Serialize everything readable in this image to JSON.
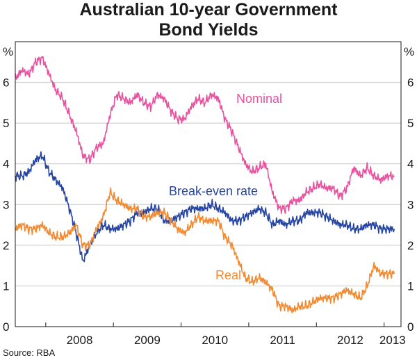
{
  "chart_data": {
    "type": "line",
    "title": "Australian 10-year Government Bond Yields",
    "title_lines": [
      "Australian 10-year Government",
      "Bond Yields"
    ],
    "unit_label": "%",
    "ylim": [
      0,
      7
    ],
    "yticks": [
      0,
      1,
      2,
      3,
      4,
      5,
      6
    ],
    "xlim": [
      2007.55,
      2013.25
    ],
    "xtick_labels": [
      "2008",
      "2009",
      "2010",
      "2011",
      "2012",
      "2013"
    ],
    "x": [
      2007.55,
      2007.65,
      2007.75,
      2007.85,
      2007.95,
      2008.05,
      2008.15,
      2008.25,
      2008.35,
      2008.45,
      2008.55,
      2008.65,
      2008.75,
      2008.85,
      2008.95,
      2009.05,
      2009.15,
      2009.25,
      2009.35,
      2009.45,
      2009.55,
      2009.65,
      2009.75,
      2009.85,
      2009.95,
      2010.05,
      2010.15,
      2010.25,
      2010.35,
      2010.45,
      2010.55,
      2010.65,
      2010.75,
      2010.85,
      2010.95,
      2011.05,
      2011.15,
      2011.25,
      2011.35,
      2011.45,
      2011.55,
      2011.65,
      2011.75,
      2011.85,
      2011.95,
      2012.05,
      2012.15,
      2012.25,
      2012.35,
      2012.45,
      2012.55,
      2012.65,
      2012.75,
      2012.85,
      2012.95,
      2013.05,
      2013.15
    ],
    "series": [
      {
        "name": "Nominal",
        "color": "#e8529f",
        "values": [
          6.1,
          6.3,
          6.2,
          6.5,
          6.6,
          6.2,
          5.8,
          5.6,
          5.2,
          4.8,
          4.2,
          4.1,
          4.4,
          4.5,
          5.2,
          5.7,
          5.6,
          5.5,
          5.7,
          5.5,
          5.4,
          5.7,
          5.6,
          5.3,
          5.1,
          5.1,
          5.4,
          5.6,
          5.5,
          5.7,
          5.6,
          5.1,
          4.8,
          4.4,
          4.0,
          3.8,
          3.9,
          4.0,
          3.3,
          2.9,
          2.9,
          3.1,
          3.1,
          3.3,
          3.4,
          3.5,
          3.4,
          3.4,
          3.2,
          3.4,
          3.9,
          3.7,
          3.9,
          3.7,
          3.6,
          3.7,
          3.7
        ]
      },
      {
        "name": "Break-even rate",
        "color": "#2645a2",
        "values": [
          3.7,
          3.7,
          3.8,
          4.1,
          4.2,
          3.8,
          3.6,
          3.4,
          2.9,
          2.3,
          1.6,
          2.0,
          2.3,
          2.5,
          2.4,
          2.4,
          2.5,
          2.6,
          2.8,
          2.8,
          2.9,
          2.9,
          2.6,
          2.6,
          2.7,
          2.8,
          2.9,
          2.9,
          2.9,
          3.0,
          2.9,
          2.8,
          2.6,
          2.6,
          2.7,
          2.8,
          2.9,
          2.8,
          2.5,
          2.6,
          2.5,
          2.6,
          2.6,
          2.8,
          2.8,
          2.8,
          2.7,
          2.6,
          2.5,
          2.5,
          2.4,
          2.4,
          2.5,
          2.5,
          2.4,
          2.4,
          2.4
        ]
      },
      {
        "name": "Real",
        "color": "#f28a32",
        "values": [
          2.4,
          2.5,
          2.4,
          2.4,
          2.5,
          2.3,
          2.2,
          2.2,
          2.3,
          2.5,
          2.0,
          2.0,
          2.4,
          2.7,
          3.3,
          3.1,
          3.0,
          2.9,
          2.9,
          2.7,
          2.7,
          2.8,
          2.8,
          2.6,
          2.4,
          2.3,
          2.5,
          2.7,
          2.6,
          2.6,
          2.6,
          2.2,
          2.0,
          1.6,
          1.2,
          1.1,
          1.2,
          1.1,
          0.9,
          0.5,
          0.5,
          0.4,
          0.5,
          0.5,
          0.6,
          0.7,
          0.7,
          0.7,
          0.8,
          0.9,
          0.8,
          0.7,
          1.0,
          1.5,
          1.3,
          1.3,
          1.3
        ]
      }
    ],
    "series_labels": {
      "nominal": "Nominal",
      "breakeven": "Break-even rate",
      "real": "Real"
    },
    "grid": true,
    "source": "Source: RBA"
  }
}
